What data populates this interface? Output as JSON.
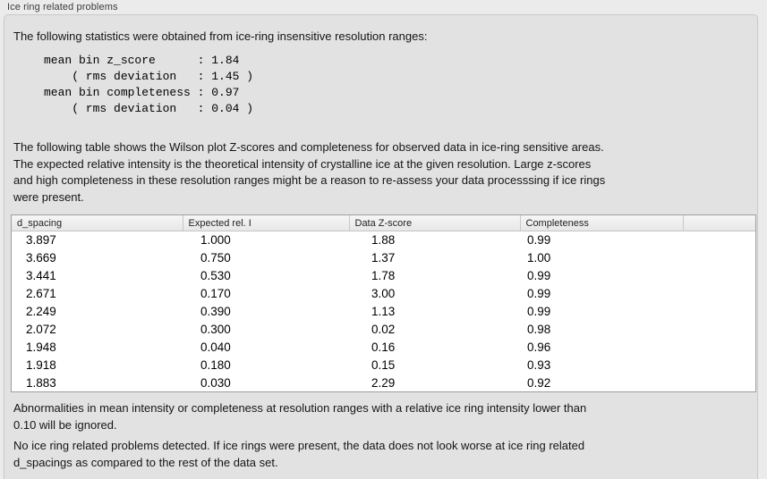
{
  "panel": {
    "title": "Ice ring related problems"
  },
  "intro": "The following statistics were obtained from ice-ring insensitive resolution ranges:",
  "stats_lines": [
    "mean bin z_score      : 1.84",
    "    ( rms deviation   : 1.45 )",
    "mean bin completeness : 0.97",
    "    ( rms deviation   : 0.04 )"
  ],
  "description_lines": [
    "The following table shows the Wilson plot Z-scores and completeness for observed data in ice-ring sensitive areas.",
    "The expected relative intensity is the theoretical intensity of crystalline ice at the given resolution. Large z-scores",
    "and high completeness in these resolution ranges might be a reason to re-assess your data processsing if ice rings",
    "were present."
  ],
  "table": {
    "columns": [
      "d_spacing",
      "Expected rel. I",
      "Data Z-score",
      "Completeness",
      ""
    ],
    "rows": [
      [
        "3.897",
        "1.000",
        "1.88",
        "0.99"
      ],
      [
        "3.669",
        "0.750",
        "1.37",
        "1.00"
      ],
      [
        "3.441",
        "0.530",
        "1.78",
        "0.99"
      ],
      [
        "2.671",
        "0.170",
        "3.00",
        "0.99"
      ],
      [
        "2.249",
        "0.390",
        "1.13",
        "0.99"
      ],
      [
        "2.072",
        "0.300",
        "0.02",
        "0.98"
      ],
      [
        "1.948",
        "0.040",
        "0.16",
        "0.96"
      ],
      [
        "1.918",
        "0.180",
        "0.15",
        "0.93"
      ],
      [
        "1.883",
        "0.030",
        "2.29",
        "0.92"
      ]
    ]
  },
  "notes": {
    "ignore_lines": [
      "Abnormalities in mean intensity or completeness at resolution ranges with a relative ice ring intensity lower than",
      "0.10 will be ignored."
    ],
    "conclusion_lines": [
      "No ice ring related problems detected. If ice rings were present, the data does not look worse at ice ring related",
      "d_spacings as compared to the rest of the data set."
    ]
  },
  "colors": {
    "page_bg": "#ebebeb",
    "panel_bg": "#e2e2e2",
    "table_bg": "#ffffff",
    "border": "#9e9e9e"
  }
}
